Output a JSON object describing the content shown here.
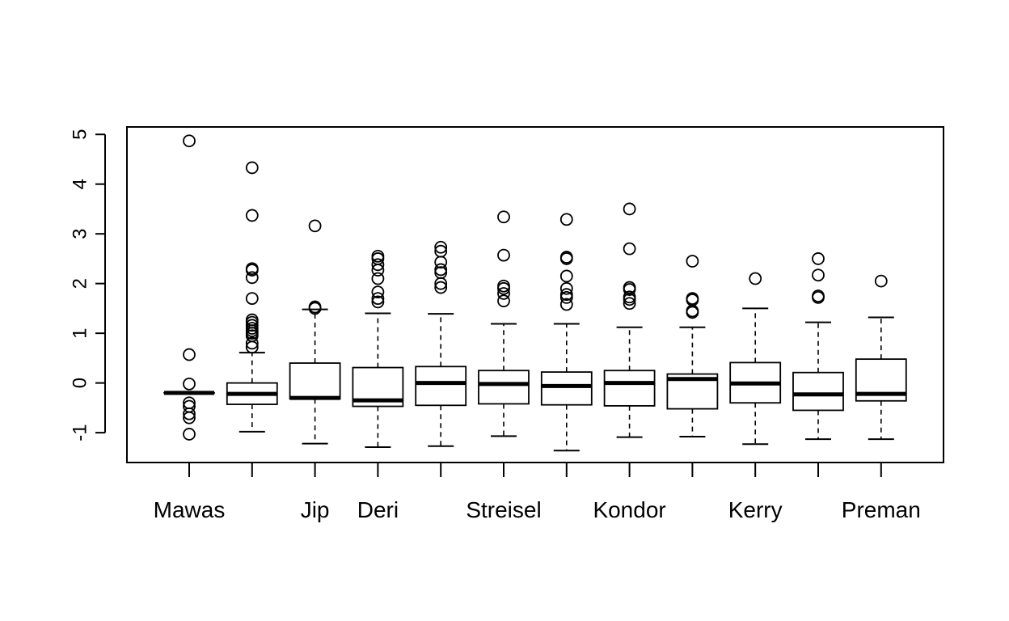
{
  "chart_data": {
    "type": "boxplot",
    "title": "",
    "xlabel": "",
    "ylabel": "",
    "ylim": [
      -1.6,
      5.15
    ],
    "yticks": [
      -1,
      0,
      1,
      2,
      3,
      4,
      5
    ],
    "grid": false,
    "legend": "none",
    "colors": {
      "stroke": "#000000",
      "fill": "#ffffff"
    },
    "boxes": [
      {
        "label": "Mawas",
        "whisker_low": -0.2,
        "q1": -0.2,
        "median": -0.2,
        "q3": -0.2,
        "whisker_high": -0.2,
        "outliers": [
          4.87,
          0.57,
          -0.02,
          -0.4,
          -0.47,
          -0.62,
          -0.7,
          -1.03
        ]
      },
      {
        "label": "",
        "whisker_low": -0.98,
        "q1": -0.43,
        "median": -0.22,
        "q3": 0.0,
        "whisker_high": 0.61,
        "outliers": [
          4.33,
          3.37,
          2.3,
          2.27,
          2.12,
          1.7,
          1.27,
          1.22,
          1.16,
          1.1,
          1.05,
          1.0,
          0.95,
          0.8,
          0.72
        ]
      },
      {
        "label": "Jip",
        "whisker_low": -1.22,
        "q1": -0.32,
        "median": -0.3,
        "q3": 0.4,
        "whisker_high": 1.48,
        "outliers": [
          3.16,
          1.53,
          1.5
        ]
      },
      {
        "label": "Deri",
        "whisker_low": -1.29,
        "q1": -0.47,
        "median": -0.35,
        "q3": 0.31,
        "whisker_high": 1.4,
        "outliers": [
          2.55,
          2.5,
          2.38,
          2.27,
          2.1,
          1.83,
          1.7,
          1.63
        ]
      },
      {
        "label": "",
        "whisker_low": -1.27,
        "q1": -0.45,
        "median": 0.0,
        "q3": 0.33,
        "whisker_high": 1.39,
        "outliers": [
          2.73,
          2.65,
          2.43,
          2.28,
          2.22,
          2.0,
          1.92
        ]
      },
      {
        "label": "Streisel",
        "whisker_low": -1.07,
        "q1": -0.42,
        "median": -0.02,
        "q3": 0.25,
        "whisker_high": 1.19,
        "outliers": [
          3.34,
          2.57,
          1.95,
          1.9,
          1.8,
          1.65
        ]
      },
      {
        "label": "",
        "whisker_low": -1.36,
        "q1": -0.44,
        "median": -0.06,
        "q3": 0.22,
        "whisker_high": 1.19,
        "outliers": [
          3.29,
          2.53,
          2.5,
          2.15,
          1.9,
          1.78,
          1.72,
          1.58
        ]
      },
      {
        "label": "Kondor",
        "whisker_low": -1.09,
        "q1": -0.46,
        "median": 0.0,
        "q3": 0.25,
        "whisker_high": 1.12,
        "outliers": [
          3.5,
          2.7,
          1.92,
          1.88,
          1.73,
          1.68,
          1.6
        ]
      },
      {
        "label": "",
        "whisker_low": -1.08,
        "q1": -0.52,
        "median": 0.08,
        "q3": 0.18,
        "whisker_high": 1.12,
        "outliers": [
          2.45,
          1.7,
          1.67,
          1.45,
          1.42
        ]
      },
      {
        "label": "Kerry",
        "whisker_low": -1.23,
        "q1": -0.4,
        "median": -0.01,
        "q3": 0.41,
        "whisker_high": 1.5,
        "outliers": [
          2.1
        ]
      },
      {
        "label": "",
        "whisker_low": -1.13,
        "q1": -0.55,
        "median": -0.23,
        "q3": 0.21,
        "whisker_high": 1.22,
        "outliers": [
          2.5,
          2.17,
          1.75,
          1.72
        ]
      },
      {
        "label": "Preman",
        "whisker_low": -1.13,
        "q1": -0.36,
        "median": -0.22,
        "q3": 0.48,
        "whisker_high": 1.32,
        "outliers": [
          2.05
        ]
      }
    ]
  }
}
